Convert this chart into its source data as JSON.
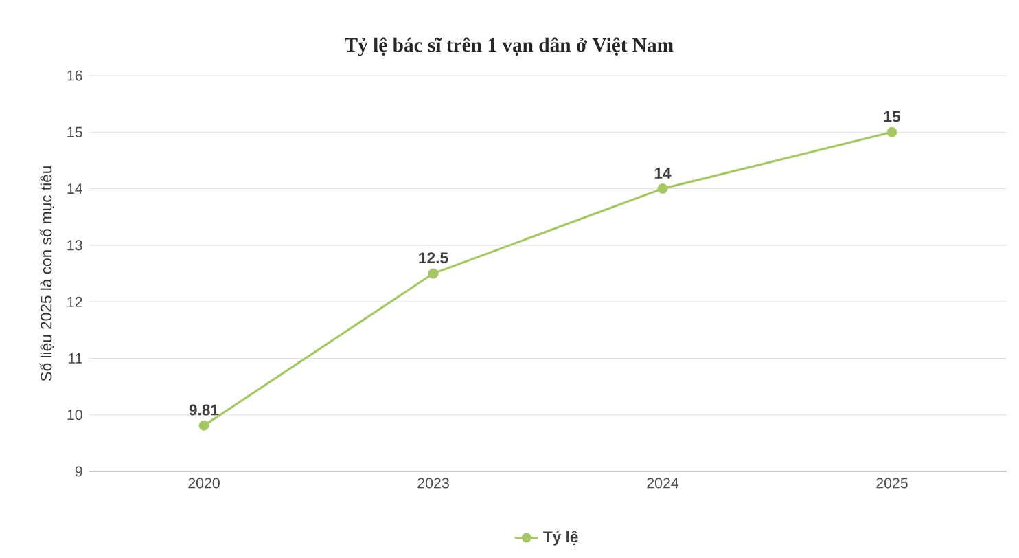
{
  "chart_data": {
    "type": "line",
    "title": "Tỷ lệ bác sĩ trên 1 vạn dân ở Việt Nam",
    "ylabel": "Số liệu 2025 là con số mục tiêu",
    "categories": [
      "2020",
      "2023",
      "2024",
      "2025"
    ],
    "series": [
      {
        "name": "Tỷ lệ",
        "color": "#a5c864",
        "values": [
          9.81,
          12.5,
          14,
          15
        ]
      }
    ],
    "ylim": [
      9,
      16
    ],
    "yticks": [
      9,
      10,
      11,
      12,
      13,
      14,
      15,
      16
    ],
    "grid": "y",
    "legend": "bottom",
    "marker": "circle",
    "line_style": "solid",
    "data_labels": true
  }
}
